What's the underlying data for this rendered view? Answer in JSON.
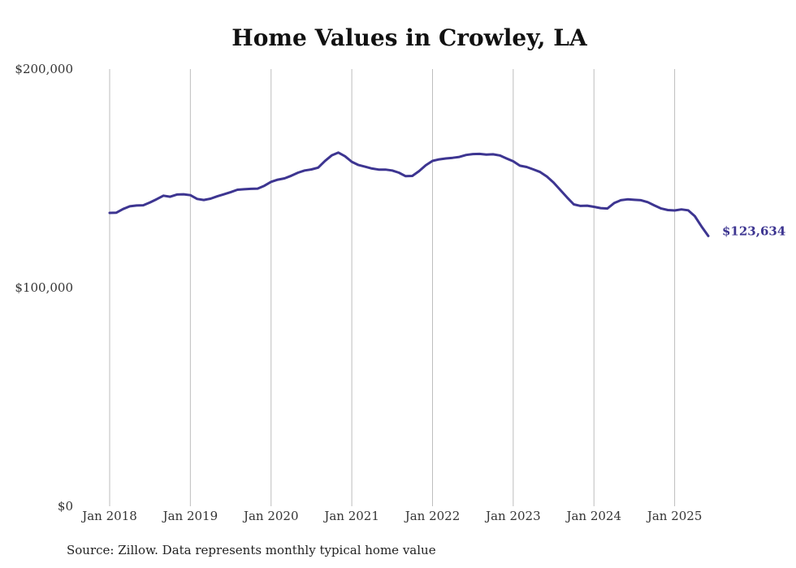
{
  "chart_data": {
    "type": "line",
    "title": "Home Values in Crowley, LA",
    "source_note": "Source: Zillow. Data represents monthly typical home value",
    "ylim": [
      0,
      200000
    ],
    "y_ticks": [
      {
        "value": 0,
        "label": "$0"
      },
      {
        "value": 100000,
        "label": "$100,000"
      },
      {
        "value": 200000,
        "label": "$200,000"
      }
    ],
    "x_ticks": [
      {
        "date": "2018-01",
        "label": "Jan 2018"
      },
      {
        "date": "2019-01",
        "label": "Jan 2019"
      },
      {
        "date": "2020-01",
        "label": "Jan 2020"
      },
      {
        "date": "2021-01",
        "label": "Jan 2021"
      },
      {
        "date": "2022-01",
        "label": "Jan 2022"
      },
      {
        "date": "2023-01",
        "label": "Jan 2023"
      },
      {
        "date": "2024-01",
        "label": "Jan 2024"
      },
      {
        "date": "2025-01",
        "label": "Jan 2025"
      }
    ],
    "x_grid": true,
    "y_grid": false,
    "line_color": "#3d3591",
    "end_label": "$123,634",
    "series": [
      {
        "points": [
          [
            "2018-01",
            134200
          ],
          [
            "2018-02",
            134300
          ],
          [
            "2018-03",
            136000
          ],
          [
            "2018-04",
            137200
          ],
          [
            "2018-05",
            137600
          ],
          [
            "2018-06",
            137700
          ],
          [
            "2018-07",
            139000
          ],
          [
            "2018-08",
            140500
          ],
          [
            "2018-09",
            142100
          ],
          [
            "2018-10",
            141600
          ],
          [
            "2018-11",
            142600
          ],
          [
            "2018-12",
            142700
          ],
          [
            "2019-01",
            142300
          ],
          [
            "2019-02",
            140600
          ],
          [
            "2019-03",
            140100
          ],
          [
            "2019-04",
            140700
          ],
          [
            "2019-05",
            141800
          ],
          [
            "2019-06",
            142700
          ],
          [
            "2019-07",
            143700
          ],
          [
            "2019-08",
            144800
          ],
          [
            "2019-09",
            145000
          ],
          [
            "2019-10",
            145200
          ],
          [
            "2019-11",
            145300
          ],
          [
            "2019-12",
            146600
          ],
          [
            "2020-01",
            148400
          ],
          [
            "2020-02",
            149400
          ],
          [
            "2020-03",
            150000
          ],
          [
            "2020-04",
            151200
          ],
          [
            "2020-05",
            152600
          ],
          [
            "2020-06",
            153600
          ],
          [
            "2020-07",
            154100
          ],
          [
            "2020-08",
            154900
          ],
          [
            "2020-09",
            157900
          ],
          [
            "2020-10",
            160500
          ],
          [
            "2020-11",
            161800
          ],
          [
            "2020-12",
            160100
          ],
          [
            "2021-01",
            157600
          ],
          [
            "2021-02",
            156100
          ],
          [
            "2021-03",
            155300
          ],
          [
            "2021-04",
            154500
          ],
          [
            "2021-05",
            154000
          ],
          [
            "2021-06",
            154000
          ],
          [
            "2021-07",
            153600
          ],
          [
            "2021-08",
            152600
          ],
          [
            "2021-09",
            151000
          ],
          [
            "2021-10",
            151100
          ],
          [
            "2021-11",
            153300
          ],
          [
            "2021-12",
            156000
          ],
          [
            "2022-01",
            158000
          ],
          [
            "2022-02",
            158700
          ],
          [
            "2022-03",
            159100
          ],
          [
            "2022-04",
            159400
          ],
          [
            "2022-05",
            159800
          ],
          [
            "2022-06",
            160700
          ],
          [
            "2022-07",
            161100
          ],
          [
            "2022-08",
            161200
          ],
          [
            "2022-09",
            160900
          ],
          [
            "2022-10",
            161000
          ],
          [
            "2022-11",
            160500
          ],
          [
            "2022-12",
            159100
          ],
          [
            "2023-01",
            157800
          ],
          [
            "2023-02",
            155800
          ],
          [
            "2023-03",
            155200
          ],
          [
            "2023-04",
            154100
          ],
          [
            "2023-05",
            152900
          ],
          [
            "2023-06",
            150800
          ],
          [
            "2023-07",
            148100
          ],
          [
            "2023-08",
            144700
          ],
          [
            "2023-09",
            141300
          ],
          [
            "2023-10",
            138100
          ],
          [
            "2023-11",
            137400
          ],
          [
            "2023-12",
            137500
          ],
          [
            "2024-01",
            137000
          ],
          [
            "2024-02",
            136400
          ],
          [
            "2024-03",
            136200
          ],
          [
            "2024-04",
            138700
          ],
          [
            "2024-05",
            140000
          ],
          [
            "2024-06",
            140400
          ],
          [
            "2024-07",
            140200
          ],
          [
            "2024-08",
            140000
          ],
          [
            "2024-09",
            139100
          ],
          [
            "2024-10",
            137600
          ],
          [
            "2024-11",
            136200
          ],
          [
            "2024-12",
            135500
          ],
          [
            "2025-01",
            135300
          ],
          [
            "2025-02",
            135800
          ],
          [
            "2025-03",
            135400
          ],
          [
            "2025-04",
            132700
          ],
          [
            "2025-05",
            128000
          ],
          [
            "2025-06",
            123634
          ]
        ]
      }
    ]
  }
}
